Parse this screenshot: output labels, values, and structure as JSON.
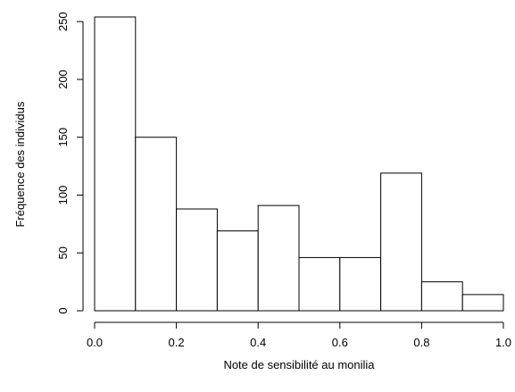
{
  "chart_data": {
    "type": "bar",
    "subtype": "histogram",
    "title": "",
    "xlabel": "Note de sensibilité au monilia",
    "ylabel": "Fréquence des individus",
    "bins": [
      {
        "start": 0.0,
        "end": 0.1,
        "count": 254
      },
      {
        "start": 0.1,
        "end": 0.2,
        "count": 150
      },
      {
        "start": 0.2,
        "end": 0.3,
        "count": 88
      },
      {
        "start": 0.3,
        "end": 0.4,
        "count": 69
      },
      {
        "start": 0.4,
        "end": 0.5,
        "count": 91
      },
      {
        "start": 0.5,
        "end": 0.6,
        "count": 46
      },
      {
        "start": 0.6,
        "end": 0.7,
        "count": 46
      },
      {
        "start": 0.7,
        "end": 0.8,
        "count": 119
      },
      {
        "start": 0.8,
        "end": 0.9,
        "count": 25
      },
      {
        "start": 0.9,
        "end": 1.0,
        "count": 14
      }
    ],
    "xlim": [
      0.0,
      1.0
    ],
    "ylim": [
      0,
      254
    ],
    "x_ticks": [
      "0.0",
      "0.2",
      "0.4",
      "0.6",
      "0.8",
      "1.0"
    ],
    "y_ticks": [
      "0",
      "50",
      "100",
      "150",
      "200",
      "250"
    ],
    "grid": false,
    "bar_fill": "#ffffff",
    "bar_stroke": "#000000"
  }
}
